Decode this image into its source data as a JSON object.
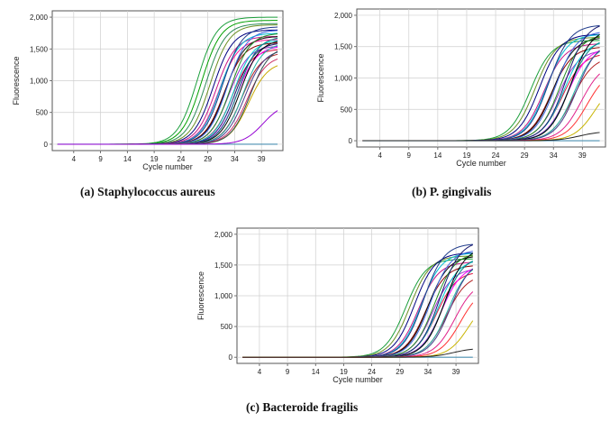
{
  "chart_data": [
    {
      "type": "line",
      "title": "(a) Staphylococcus aureus",
      "xlabel": "Cycle number",
      "ylabel": "Fluorescence",
      "x_ticks": [
        4,
        9,
        14,
        19,
        24,
        29,
        34,
        39
      ],
      "y_ticks": [
        0,
        500,
        1000,
        1500,
        2000
      ],
      "y_tick_labels": [
        "0",
        "500",
        "1,000",
        "1,500",
        "2,000"
      ],
      "xlim": [
        0,
        43
      ],
      "ylim": [
        -100,
        2100
      ],
      "grid": true,
      "baseline": 0,
      "series": [
        {
          "color": "#1a9e3a",
          "mid": 27.0,
          "max": 2000
        },
        {
          "color": "#00a000",
          "mid": 27.8,
          "max": 1950
        },
        {
          "color": "#2e8b57",
          "mid": 28.6,
          "max": 1900
        },
        {
          "color": "#6b8e23",
          "mid": 29.4,
          "max": 1880
        },
        {
          "color": "#000080",
          "mid": 30.0,
          "max": 1800
        },
        {
          "color": "#c71585",
          "mid": 30.5,
          "max": 1700
        },
        {
          "color": "#ff1493",
          "mid": 31.0,
          "max": 1650
        },
        {
          "color": "#00bcd4",
          "mid": 31.3,
          "max": 1750
        },
        {
          "color": "#1e3a8a",
          "mid": 31.7,
          "max": 1850
        },
        {
          "color": "#8b0000",
          "mid": 32.0,
          "max": 1600
        },
        {
          "color": "#111111",
          "mid": 32.3,
          "max": 1700
        },
        {
          "color": "#4169e1",
          "mid": 32.6,
          "max": 1800
        },
        {
          "color": "#9932cc",
          "mid": 32.9,
          "max": 1550
        },
        {
          "color": "#228b22",
          "mid": 33.2,
          "max": 1750
        },
        {
          "color": "#dc143c",
          "mid": 33.5,
          "max": 1500
        },
        {
          "color": "#00ced1",
          "mid": 33.8,
          "max": 1650
        },
        {
          "color": "#191970",
          "mid": 34.1,
          "max": 1600
        },
        {
          "color": "#ff00ff",
          "mid": 34.4,
          "max": 1550
        },
        {
          "color": "#008080",
          "mid": 34.7,
          "max": 1700
        },
        {
          "color": "#000000",
          "mid": 35.0,
          "max": 1650
        },
        {
          "color": "#b22222",
          "mid": 35.3,
          "max": 1450
        },
        {
          "color": "#20b2aa",
          "mid": 35.6,
          "max": 1600
        },
        {
          "color": "#483d8b",
          "mid": 35.9,
          "max": 1500
        },
        {
          "color": "#c8a800",
          "mid": 36.6,
          "max": 1300
        },
        {
          "color": "#cc3366",
          "mid": 36.3,
          "max": 1400
        },
        {
          "color": "#2f4f4f",
          "mid": 36.9,
          "max": 1550
        },
        {
          "color": "#9400d3",
          "mid": 39.3,
          "max": 650
        }
      ]
    },
    {
      "type": "line",
      "title": "(b) P. gingivalis",
      "xlabel": "Cycle number",
      "ylabel": "Fluorescence",
      "x_ticks": [
        4,
        9,
        14,
        19,
        24,
        29,
        34,
        39
      ],
      "y_ticks": [
        0,
        500,
        1000,
        1500,
        2000
      ],
      "y_tick_labels": [
        "0",
        "500",
        "1,000",
        "1,500",
        "2,000"
      ],
      "xlim": [
        0,
        43
      ],
      "ylim": [
        -100,
        2100
      ],
      "grid": true,
      "baseline": 0,
      "series": [
        {
          "color": "#1a9e3a",
          "mid": 30.0,
          "max": 1600
        },
        {
          "color": "#6b8e23",
          "mid": 30.8,
          "max": 1650
        },
        {
          "color": "#000080",
          "mid": 31.6,
          "max": 1700
        },
        {
          "color": "#c71585",
          "mid": 32.3,
          "max": 1550
        },
        {
          "color": "#00bcd4",
          "mid": 32.8,
          "max": 1700
        },
        {
          "color": "#1e3a8a",
          "mid": 33.2,
          "max": 1850
        },
        {
          "color": "#8b0000",
          "mid": 33.6,
          "max": 1500
        },
        {
          "color": "#111111",
          "mid": 34.0,
          "max": 1650
        },
        {
          "color": "#4169e1",
          "mid": 34.4,
          "max": 1750
        },
        {
          "color": "#9932cc",
          "mid": 34.8,
          "max": 1450
        },
        {
          "color": "#228b22",
          "mid": 35.1,
          "max": 1700
        },
        {
          "color": "#dc143c",
          "mid": 35.5,
          "max": 1400
        },
        {
          "color": "#00ced1",
          "mid": 35.8,
          "max": 1600
        },
        {
          "color": "#191970",
          "mid": 36.1,
          "max": 1900
        },
        {
          "color": "#ff00ff",
          "mid": 36.4,
          "max": 1500
        },
        {
          "color": "#008080",
          "mid": 36.7,
          "max": 1650
        },
        {
          "color": "#000000",
          "mid": 37.0,
          "max": 1800
        },
        {
          "color": "#b22222",
          "mid": 37.3,
          "max": 1350
        },
        {
          "color": "#20b2aa",
          "mid": 37.6,
          "max": 1550
        },
        {
          "color": "#483d8b",
          "mid": 38.0,
          "max": 1600
        },
        {
          "color": "#e0218a",
          "mid": 38.8,
          "max": 1250
        },
        {
          "color": "#ff3030",
          "mid": 39.8,
          "max": 1150
        },
        {
          "color": "#c8b400",
          "mid": 41.3,
          "max": 1000
        },
        {
          "color": "#222222",
          "mid": 38.5,
          "max": 150
        }
      ]
    },
    {
      "type": "line",
      "title": "(c) Bacteroide fragilis",
      "xlabel": "Cycle number",
      "ylabel": "Fluorescence",
      "x_ticks": [
        4,
        9,
        14,
        19,
        24,
        29,
        34,
        39
      ],
      "y_ticks": [
        0,
        500,
        1000,
        1500,
        2000
      ],
      "y_tick_labels": [
        "0",
        "500",
        "1,000",
        "1,500",
        "2,000"
      ],
      "xlim": [
        0,
        43
      ],
      "ylim": [
        -100,
        2100
      ],
      "grid": true,
      "baseline": 0,
      "series": [
        {
          "color": "#1a9e3a",
          "mid": 30.0,
          "max": 1600
        },
        {
          "color": "#6b8e23",
          "mid": 30.8,
          "max": 1650
        },
        {
          "color": "#000080",
          "mid": 31.6,
          "max": 1700
        },
        {
          "color": "#c71585",
          "mid": 32.3,
          "max": 1550
        },
        {
          "color": "#00bcd4",
          "mid": 32.8,
          "max": 1700
        },
        {
          "color": "#1e3a8a",
          "mid": 33.2,
          "max": 1850
        },
        {
          "color": "#8b0000",
          "mid": 33.6,
          "max": 1500
        },
        {
          "color": "#111111",
          "mid": 34.0,
          "max": 1650
        },
        {
          "color": "#4169e1",
          "mid": 34.4,
          "max": 1750
        },
        {
          "color": "#9932cc",
          "mid": 34.8,
          "max": 1450
        },
        {
          "color": "#228b22",
          "mid": 35.1,
          "max": 1700
        },
        {
          "color": "#dc143c",
          "mid": 35.5,
          "max": 1400
        },
        {
          "color": "#00ced1",
          "mid": 35.8,
          "max": 1600
        },
        {
          "color": "#191970",
          "mid": 36.1,
          "max": 1900
        },
        {
          "color": "#ff00ff",
          "mid": 36.4,
          "max": 1500
        },
        {
          "color": "#008080",
          "mid": 36.7,
          "max": 1650
        },
        {
          "color": "#000000",
          "mid": 37.0,
          "max": 1800
        },
        {
          "color": "#b22222",
          "mid": 37.3,
          "max": 1350
        },
        {
          "color": "#20b2aa",
          "mid": 37.6,
          "max": 1550
        },
        {
          "color": "#483d8b",
          "mid": 38.0,
          "max": 1600
        },
        {
          "color": "#e0218a",
          "mid": 38.8,
          "max": 1250
        },
        {
          "color": "#ff3030",
          "mid": 39.8,
          "max": 1150
        },
        {
          "color": "#c8b400",
          "mid": 41.3,
          "max": 1000
        },
        {
          "color": "#222222",
          "mid": 38.5,
          "max": 150
        }
      ]
    }
  ]
}
